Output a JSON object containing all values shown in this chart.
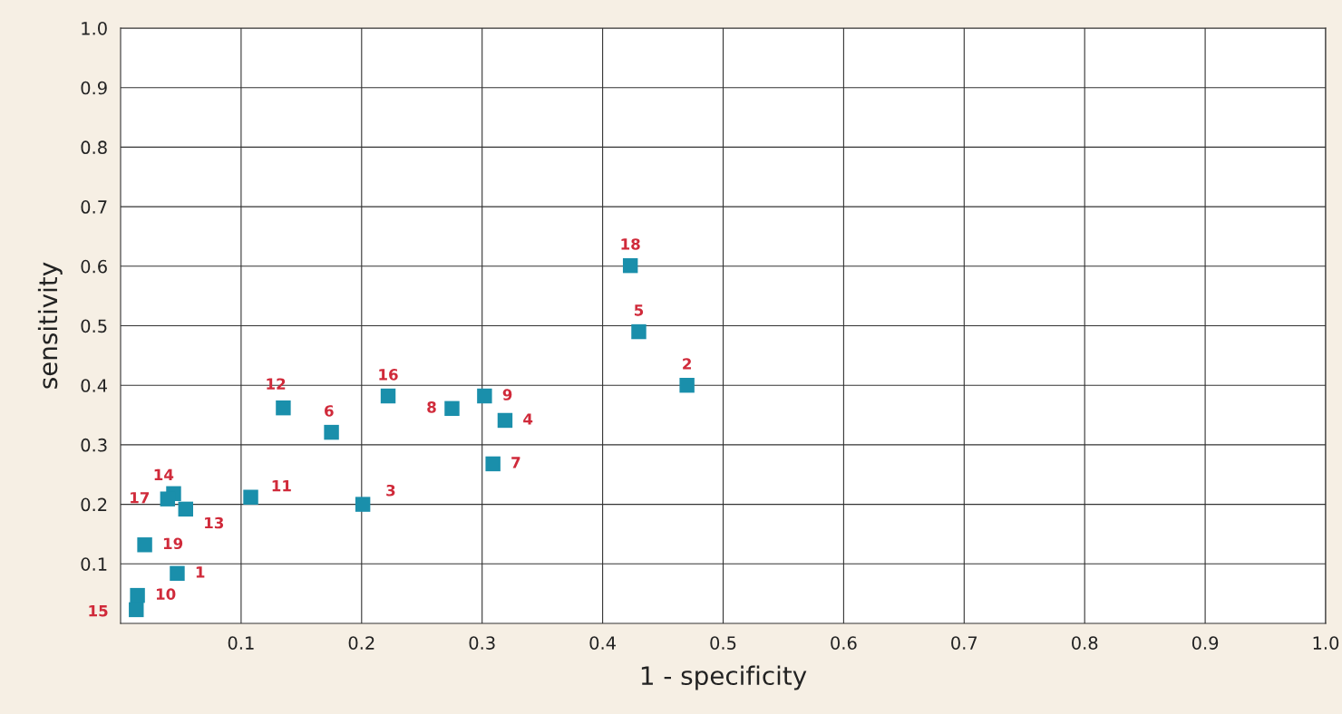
{
  "chart_data": {
    "type": "scatter",
    "xlabel": "1 - specificity",
    "ylabel": "sensitivity",
    "x": [
      0.047,
      0.47,
      0.201,
      0.319,
      0.43,
      0.175,
      0.309,
      0.275,
      0.302,
      0.014,
      0.108,
      0.135,
      0.054,
      0.044,
      0.013,
      0.222,
      0.039,
      0.423,
      0.02
    ],
    "series": [
      {
        "color": "#1a8fab",
        "values": [
          0.084,
          0.4,
          0.2,
          0.341,
          0.49,
          0.321,
          0.268,
          0.361,
          0.382,
          0.047,
          0.212,
          0.362,
          0.192,
          0.218,
          0.023,
          0.382,
          0.209,
          0.601,
          0.132
        ]
      }
    ],
    "annotations": [
      {
        "text": "1",
        "x": 0.047,
        "y": 0.084
      },
      {
        "text": "2",
        "x": 0.47,
        "y": 0.4
      },
      {
        "text": "3",
        "x": 0.201,
        "y": 0.2
      },
      {
        "text": "4",
        "x": 0.319,
        "y": 0.341
      },
      {
        "text": "5",
        "x": 0.43,
        "y": 0.49
      },
      {
        "text": "6",
        "x": 0.175,
        "y": 0.321
      },
      {
        "text": "7",
        "x": 0.309,
        "y": 0.268
      },
      {
        "text": "8",
        "x": 0.275,
        "y": 0.361
      },
      {
        "text": "9",
        "x": 0.302,
        "y": 0.382
      },
      {
        "text": "10",
        "x": 0.014,
        "y": 0.047
      },
      {
        "text": "11",
        "x": 0.108,
        "y": 0.212
      },
      {
        "text": "12",
        "x": 0.135,
        "y": 0.362
      },
      {
        "text": "13",
        "x": 0.054,
        "y": 0.192
      },
      {
        "text": "14",
        "x": 0.044,
        "y": 0.218
      },
      {
        "text": "15",
        "x": 0.013,
        "y": 0.023
      },
      {
        "text": "16",
        "x": 0.222,
        "y": 0.382
      },
      {
        "text": "17",
        "x": 0.039,
        "y": 0.209
      },
      {
        "text": "18",
        "x": 0.423,
        "y": 0.601
      },
      {
        "text": "19",
        "x": 0.02,
        "y": 0.132
      }
    ],
    "xlim": [
      0,
      1.0
    ],
    "ylim": [
      0,
      1.0
    ],
    "xticks": [
      0.1,
      0.2,
      0.3,
      0.4,
      0.5,
      0.6,
      0.7,
      0.8,
      0.9,
      {
        "value": 1,
        "label": "1.0"
      }
    ],
    "yticks": [
      0.1,
      0.2,
      0.3,
      0.4,
      0.5,
      0.6,
      0.7,
      0.8,
      0.9,
      {
        "value": 1,
        "label": "1.0"
      }
    ],
    "grid": true,
    "marker": "square"
  }
}
